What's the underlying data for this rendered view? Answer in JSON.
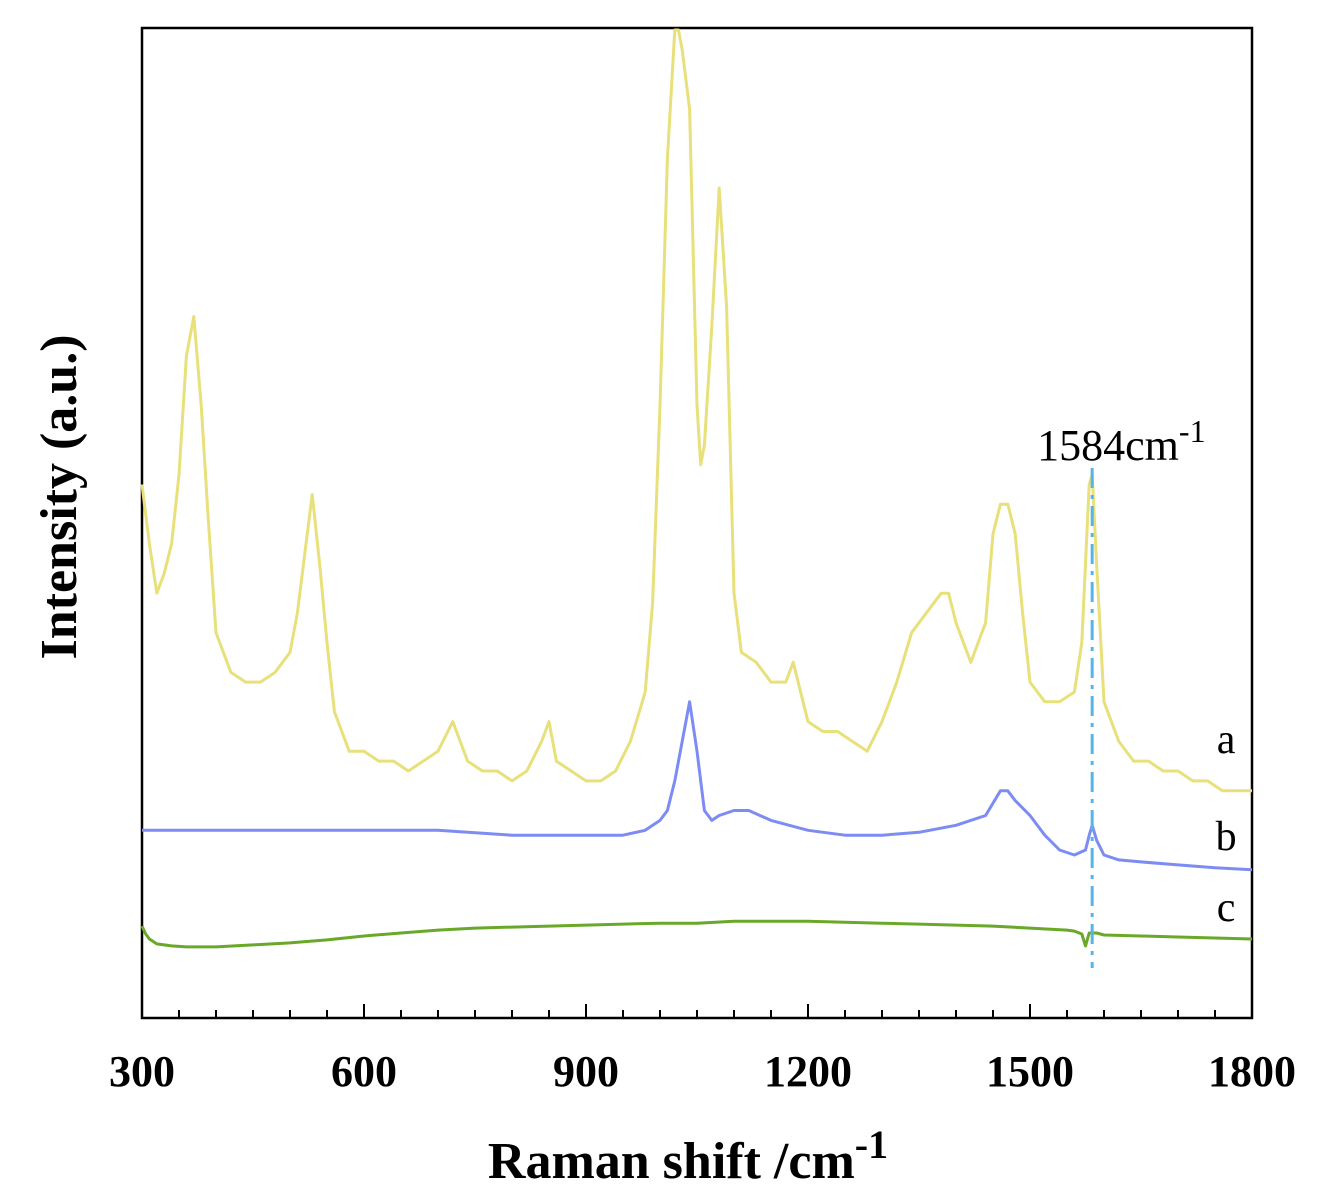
{
  "chart_data": {
    "type": "line",
    "title": "",
    "xlabel": "Raman shift /cm",
    "xlabel_sup": "-1",
    "ylabel": "Intensity (a.u.)",
    "xlim": [
      300,
      1800
    ],
    "ylim": [
      0,
      100
    ],
    "xticks": [
      300,
      600,
      900,
      1200,
      1500,
      1800
    ],
    "yticks_shown": false,
    "annotation": {
      "text": "1584cm",
      "sup": "-1",
      "x": 1584,
      "style": "dash-dot",
      "color": "#56b4e9"
    },
    "series": [
      {
        "name": "a",
        "color": "#e8e07a",
        "x": [
          300,
          310,
          320,
          330,
          340,
          350,
          360,
          370,
          380,
          390,
          400,
          420,
          440,
          460,
          480,
          500,
          510,
          520,
          530,
          540,
          550,
          560,
          580,
          600,
          620,
          640,
          660,
          680,
          700,
          720,
          740,
          760,
          780,
          800,
          820,
          840,
          850,
          860,
          880,
          900,
          920,
          940,
          960,
          980,
          990,
          1000,
          1010,
          1020,
          1025,
          1030,
          1040,
          1050,
          1055,
          1060,
          1070,
          1080,
          1090,
          1100,
          1110,
          1130,
          1150,
          1170,
          1180,
          1190,
          1200,
          1220,
          1240,
          1260,
          1280,
          1300,
          1320,
          1340,
          1360,
          1380,
          1390,
          1400,
          1420,
          1440,
          1450,
          1460,
          1470,
          1480,
          1490,
          1500,
          1520,
          1540,
          1560,
          1570,
          1575,
          1580,
          1584,
          1590,
          1600,
          1620,
          1640,
          1660,
          1680,
          1700,
          1720,
          1740,
          1760,
          1780,
          1800
        ],
        "y": [
          54,
          48,
          43,
          45,
          48,
          55,
          67,
          71,
          62,
          50,
          39,
          35,
          34,
          34,
          35,
          37,
          41,
          47,
          53,
          46,
          38,
          31,
          27,
          27,
          26,
          26,
          25,
          26,
          27,
          30,
          26,
          25,
          25,
          24,
          25,
          28,
          30,
          26,
          25,
          24,
          24,
          25,
          28,
          33,
          42,
          62,
          87,
          100,
          100,
          98,
          92,
          62,
          56,
          58,
          70,
          84,
          72,
          43,
          37,
          36,
          34,
          34,
          36,
          33,
          30,
          29,
          29,
          28,
          27,
          30,
          34,
          39,
          41,
          43,
          43,
          40,
          36,
          40,
          49,
          52,
          52,
          49,
          41,
          34,
          32,
          32,
          33,
          38,
          46,
          54,
          55,
          46,
          32,
          28,
          26,
          26,
          25,
          25,
          24,
          24,
          23,
          23,
          23
        ]
      },
      {
        "name": "b",
        "color": "#7c8cf2",
        "x": [
          300,
          400,
          500,
          600,
          700,
          800,
          900,
          950,
          980,
          1000,
          1010,
          1020,
          1030,
          1040,
          1050,
          1060,
          1070,
          1080,
          1100,
          1120,
          1150,
          1200,
          1250,
          1300,
          1350,
          1400,
          1440,
          1460,
          1470,
          1480,
          1500,
          1520,
          1540,
          1560,
          1575,
          1580,
          1584,
          1590,
          1600,
          1620,
          1650,
          1700,
          1750,
          1800
        ],
        "y": [
          19,
          19,
          19,
          19,
          19,
          18.5,
          18.5,
          18.5,
          19,
          20,
          21,
          24,
          28,
          32,
          27,
          21,
          20,
          20.5,
          21,
          21,
          20,
          19,
          18.5,
          18.5,
          18.8,
          19.5,
          20.5,
          23,
          23,
          22,
          20.5,
          18.5,
          17,
          16.5,
          17,
          18.5,
          19.5,
          18,
          16.5,
          16,
          15.8,
          15.5,
          15.2,
          15
        ]
      },
      {
        "name": "c",
        "color": "#6aa829",
        "x": [
          300,
          305,
          310,
          320,
          340,
          360,
          400,
          450,
          500,
          550,
          600,
          650,
          700,
          750,
          800,
          850,
          900,
          950,
          1000,
          1050,
          1100,
          1150,
          1200,
          1250,
          1300,
          1350,
          1400,
          1450,
          1500,
          1550,
          1560,
          1570,
          1575,
          1580,
          1590,
          1600,
          1650,
          1700,
          1750,
          1800
        ],
        "y": [
          9.3,
          8.5,
          8,
          7.5,
          7.3,
          7.2,
          7.2,
          7.4,
          7.6,
          7.9,
          8.3,
          8.6,
          8.9,
          9.1,
          9.2,
          9.3,
          9.4,
          9.5,
          9.6,
          9.6,
          9.8,
          9.8,
          9.8,
          9.7,
          9.6,
          9.5,
          9.4,
          9.3,
          9.1,
          8.9,
          8.8,
          8.5,
          7.3,
          8.6,
          8.6,
          8.4,
          8.3,
          8.2,
          8.1,
          8.0
        ]
      }
    ]
  }
}
